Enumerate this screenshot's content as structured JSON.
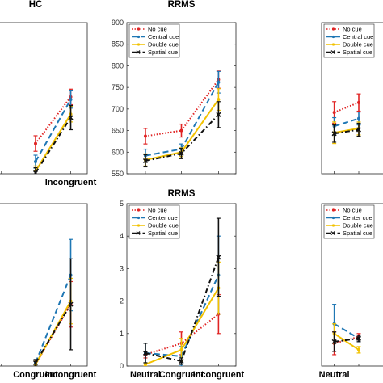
{
  "colors": {
    "no_cue": "#e02424",
    "center_cue": "#1f77b4",
    "double_cue": "#f2c200",
    "spatial_cue": "#111111"
  },
  "categories": [
    "Neutral",
    "Congruent",
    "Incongruent"
  ],
  "chart_data": [
    {
      "id": "hc-rt",
      "type": "line",
      "title": "HC",
      "categories": [
        "Neutral",
        "Congruent",
        "Incongruent"
      ],
      "category_labels_shown": [
        "",
        "",
        "Incongruent"
      ],
      "ylim": [
        550,
        900
      ],
      "yticks": [],
      "grid": false,
      "legend": null,
      "series": [
        {
          "key": "no_cue",
          "values": [
            null,
            620,
            728
          ],
          "err": [
            null,
            18,
            18
          ]
        },
        {
          "key": "center_cue",
          "values": [
            null,
            578,
            722
          ],
          "err": [
            null,
            15,
            20
          ]
        },
        {
          "key": "double_cue",
          "values": [
            null,
            556,
            688
          ],
          "err": [
            null,
            12,
            18
          ]
        },
        {
          "key": "spatial_cue",
          "values": [
            null,
            552,
            680
          ],
          "err": [
            null,
            12,
            28
          ]
        }
      ]
    },
    {
      "id": "rrms-rt",
      "type": "line",
      "title": "RRMS",
      "categories": [
        "Neutral",
        "Congruent",
        "Incongruent"
      ],
      "category_labels_shown": [
        "",
        "",
        ""
      ],
      "ylim": [
        550,
        900
      ],
      "yticks": [
        "550",
        "600",
        "650",
        "700",
        "750",
        "800",
        "850",
        "900"
      ],
      "grid": false,
      "legend": "top-left",
      "series": [
        {
          "key": "no_cue",
          "name": "No cue",
          "values": [
            637,
            650,
            768
          ],
          "err": [
            18,
            15,
            20
          ]
        },
        {
          "key": "center_cue",
          "name": "Central cue",
          "values": [
            592,
            607,
            762
          ],
          "err": [
            15,
            12,
            25
          ]
        },
        {
          "key": "double_cue",
          "name": "Double cue",
          "values": [
            582,
            600,
            722
          ],
          "err": [
            14,
            10,
            25
          ]
        },
        {
          "key": "spatial_cue",
          "name": "Spatial cue",
          "values": [
            580,
            597,
            687
          ],
          "err": [
            14,
            12,
            30
          ]
        }
      ]
    },
    {
      "id": "spms-rt",
      "type": "line",
      "title": "",
      "categories": [
        "Neutral",
        "Congruent",
        "Incongruent"
      ],
      "category_labels_shown": [
        "",
        "",
        ""
      ],
      "ylim": [
        550,
        900
      ],
      "yticks": [],
      "grid": false,
      "legend": "top-left",
      "series": [
        {
          "key": "no_cue",
          "name": "No cue",
          "values": [
            692,
            715,
            null
          ],
          "err": [
            25,
            20,
            null
          ]
        },
        {
          "key": "center_cue",
          "name": "Central cue",
          "values": [
            660,
            678,
            null
          ],
          "err": [
            20,
            15,
            null
          ]
        },
        {
          "key": "double_cue",
          "name": "Double cue",
          "values": [
            645,
            655,
            null
          ],
          "err": [
            25,
            15,
            null
          ]
        },
        {
          "key": "spatial_cue",
          "name": "Spatial cue",
          "values": [
            643,
            652,
            null
          ],
          "err": [
            20,
            15,
            null
          ]
        }
      ]
    },
    {
      "id": "hc-err",
      "type": "line",
      "title": "",
      "categories": [
        "Neutral",
        "Congruent",
        "Incongruent"
      ],
      "category_labels_shown": [
        "",
        "Congruent",
        "Incongruent"
      ],
      "ylim": [
        0,
        5
      ],
      "yticks": [],
      "grid": false,
      "legend": null,
      "series": [
        {
          "key": "no_cue",
          "values": [
            null,
            0.05,
            1.9
          ],
          "err": [
            null,
            0.1,
            0.7
          ]
        },
        {
          "key": "center_cue",
          "values": [
            null,
            0.1,
            2.8
          ],
          "err": [
            null,
            0.1,
            1.1
          ]
        },
        {
          "key": "double_cue",
          "values": [
            null,
            0.05,
            2.0
          ],
          "err": [
            null,
            0.1,
            0.7
          ]
        },
        {
          "key": "spatial_cue",
          "values": [
            null,
            0.1,
            1.9
          ],
          "err": [
            null,
            0.1,
            1.4
          ]
        }
      ]
    },
    {
      "id": "rrms-err",
      "type": "line",
      "title": "RRMS",
      "categories": [
        "Neutral",
        "Congruent",
        "Incongruent"
      ],
      "category_labels_shown": [
        "Neutral",
        "Congruent",
        "Incongruent"
      ],
      "ylim": [
        0,
        5
      ],
      "yticks": [
        "0",
        "1",
        "2",
        "3",
        "4",
        "5"
      ],
      "grid": false,
      "legend": "top-left",
      "series": [
        {
          "key": "no_cue",
          "name": "No cue",
          "values": [
            0.35,
            0.7,
            1.6
          ],
          "err": [
            0.1,
            0.35,
            0.6
          ]
        },
        {
          "key": "center_cue",
          "name": "Center cue",
          "values": [
            0.4,
            0.3,
            2.8
          ],
          "err": [
            0.3,
            0.3,
            1.2
          ]
        },
        {
          "key": "double_cue",
          "name": "Double cue",
          "values": [
            0.05,
            0.5,
            2.4
          ],
          "err": [
            0.05,
            0.35,
            0.8
          ]
        },
        {
          "key": "spatial_cue",
          "name": "Spatial cue",
          "values": [
            0.4,
            0.15,
            3.35
          ],
          "err": [
            0.3,
            0.1,
            1.2
          ]
        }
      ]
    },
    {
      "id": "spms-err",
      "type": "line",
      "title": "",
      "categories": [
        "Neutral",
        "Congruent",
        "Incongruent"
      ],
      "category_labels_shown": [
        "Neutral",
        "",
        ""
      ],
      "ylim": [
        0,
        5
      ],
      "yticks": [],
      "grid": false,
      "legend": "top-left",
      "series": [
        {
          "key": "no_cue",
          "name": "No cue",
          "values": [
            0.7,
            0.9,
            null
          ],
          "err": [
            0.35,
            0.1,
            null
          ]
        },
        {
          "key": "center_cue",
          "name": "Center cue",
          "values": [
            1.3,
            0.85,
            null
          ],
          "err": [
            0.6,
            0.1,
            null
          ]
        },
        {
          "key": "double_cue",
          "name": "Double cue",
          "values": [
            1.0,
            0.5,
            null
          ],
          "err": [
            0.3,
            0.1,
            null
          ]
        },
        {
          "key": "spatial_cue",
          "name": "Spatial cue",
          "values": [
            0.75,
            0.85,
            null
          ],
          "err": [
            0.3,
            0.1,
            null
          ]
        }
      ]
    }
  ]
}
